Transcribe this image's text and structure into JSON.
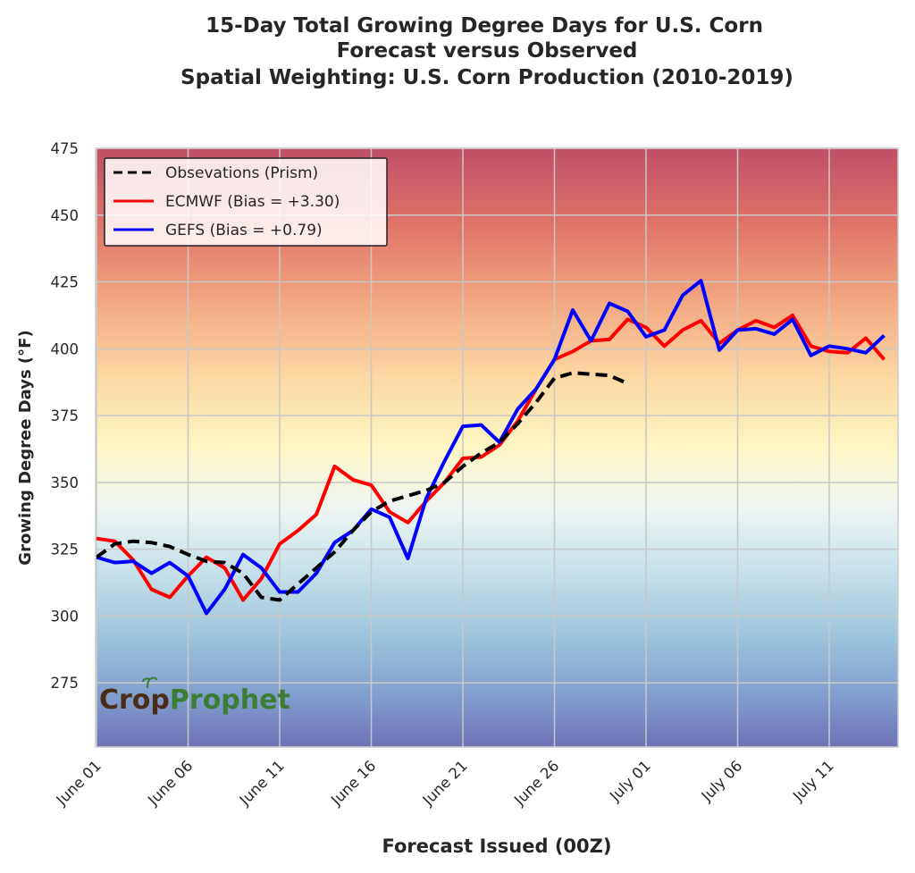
{
  "chart_data": {
    "type": "line",
    "title": [
      "15-Day Total Growing Degree Days for U.S. Corn",
      "Forecast versus Observed",
      "Spatial Weighting: U.S. Corn Production (2010-2019)"
    ],
    "xlabel": "Forecast Issued (00Z)",
    "ylabel": "Growing Degree Days (°F)",
    "ylim": [
      251,
      475
    ],
    "yticks": [
      275,
      300,
      325,
      350,
      375,
      400,
      425,
      450,
      475
    ],
    "xticks": [
      {
        "day": 0,
        "label": "June 01"
      },
      {
        "day": 5,
        "label": "June 06"
      },
      {
        "day": 10,
        "label": "June 11"
      },
      {
        "day": 15,
        "label": "June 16"
      },
      {
        "day": 20,
        "label": "June 21"
      },
      {
        "day": 25,
        "label": "June 26"
      },
      {
        "day": 30,
        "label": "July 01"
      },
      {
        "day": 35,
        "label": "July 06"
      },
      {
        "day": 40,
        "label": "July 11"
      }
    ],
    "xlim": [
      0,
      44
    ],
    "grid": true,
    "legend_position": "top-left",
    "background": "gradient-colormap",
    "series": [
      {
        "name": "Obsevations (Prism)",
        "color": "#000000",
        "style": "dashed",
        "values": [
          322,
          327,
          328,
          327.5,
          326,
          323,
          320.5,
          320,
          316,
          307,
          306,
          312,
          318,
          324,
          332,
          339,
          343,
          345,
          347,
          350,
          356,
          361,
          365,
          372,
          380,
          389,
          391,
          390.5,
          390,
          387
        ]
      },
      {
        "name": "ECMWF (Bias = +3.30)",
        "color": "#ff0000",
        "style": "solid",
        "values": [
          329,
          328,
          321,
          310,
          307,
          315,
          322,
          318,
          306,
          314,
          327,
          332,
          338,
          356,
          351,
          349,
          339,
          335,
          343,
          350,
          359,
          359.5,
          364,
          373,
          385,
          396,
          399,
          403,
          403.5,
          411,
          408,
          401,
          407,
          410.5,
          402,
          407,
          410.5,
          408,
          412.5,
          401,
          399,
          398.5,
          404,
          396
        ]
      },
      {
        "name": "GEFS (Bias = +0.79)",
        "color": "#0000ff",
        "style": "solid",
        "values": [
          322,
          320,
          320.5,
          316,
          320,
          315,
          301,
          310,
          323,
          318,
          309,
          309,
          316,
          327.5,
          332,
          340,
          337,
          321.5,
          344,
          358,
          371,
          371.5,
          365,
          377.5,
          385,
          396,
          414.5,
          403,
          417,
          414,
          404.5,
          407,
          420,
          425.5,
          399.5,
          407,
          407.5,
          405.5,
          411,
          397.5,
          401,
          400,
          398.5,
          405
        ]
      }
    ]
  },
  "logo": {
    "part1": "Crop",
    "part2": "Prophet"
  }
}
